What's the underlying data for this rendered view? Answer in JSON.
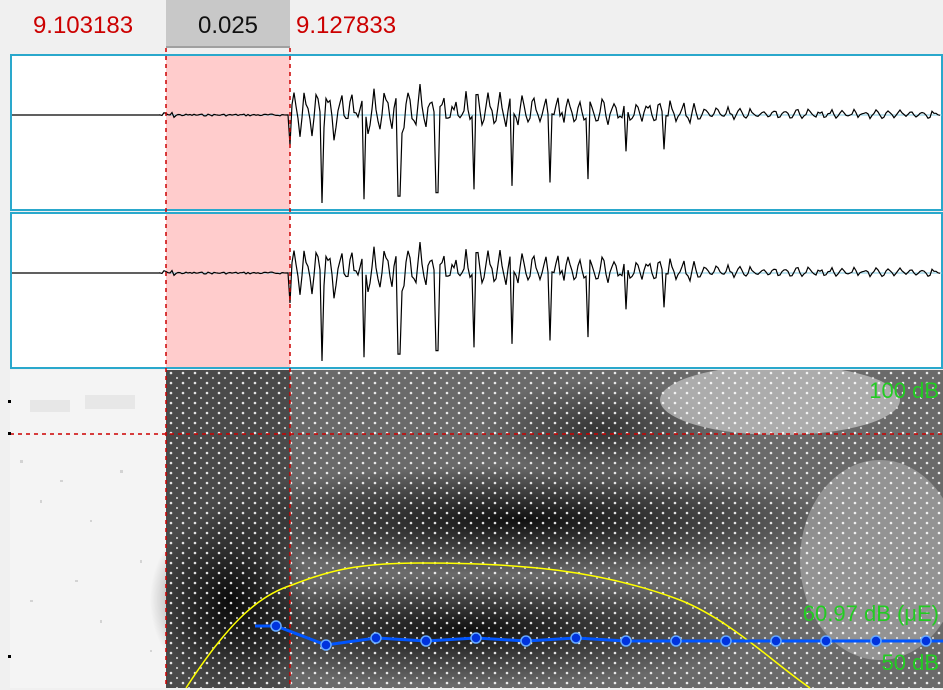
{
  "selection": {
    "start_time": "9.103183",
    "duration": "0.025",
    "end_time": "9.127833"
  },
  "spectrogram": {
    "max_db_label": "100 dB",
    "min_db_label": "50 dB",
    "cursor_db_label": "60.97 dB (μE)"
  },
  "colors": {
    "selection_fill": "#ffcccc",
    "cursor_red": "#cc0000",
    "channel_border": "#2aa8cc",
    "waveform": "#000000",
    "intensity": "#ffff00",
    "pitch": "#0055ff",
    "db_labels": "#22cc22"
  }
}
